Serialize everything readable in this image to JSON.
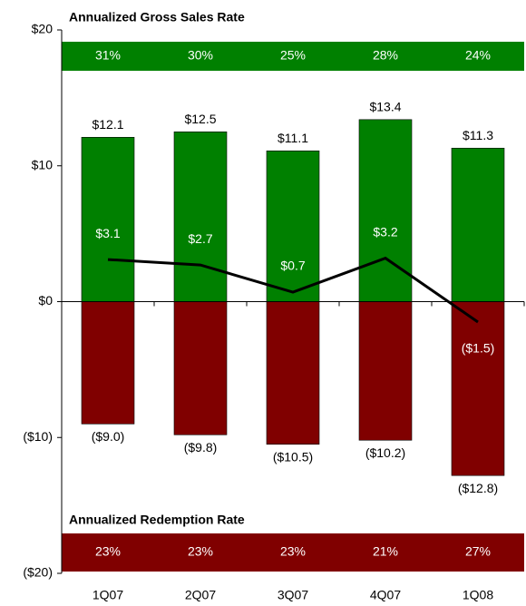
{
  "chart_data": {
    "type": "bar",
    "categories": [
      "1Q07",
      "2Q07",
      "3Q07",
      "4Q07",
      "1Q08"
    ],
    "series": [
      {
        "color": "#008000",
        "values": [
          12.1,
          12.5,
          11.1,
          13.4,
          11.3
        ],
        "value_labels": [
          "$12.1",
          "$12.5",
          "$11.1",
          "$13.4",
          "$11.3"
        ]
      },
      {
        "color": "#800000",
        "values": [
          -9.0,
          -9.8,
          -10.5,
          -10.2,
          -12.8
        ],
        "value_labels": [
          "($9.0)",
          "($9.8)",
          "($10.5)",
          "($10.2)",
          "($12.8)"
        ]
      },
      {
        "type": "line",
        "color": "#000000",
        "values": [
          3.1,
          2.7,
          0.7,
          3.2,
          -1.5
        ],
        "value_labels": [
          "$3.1",
          "$2.7",
          "$0.7",
          "$3.2",
          "($1.5)"
        ]
      }
    ],
    "top_band": {
      "title": "Annualized Gross Sales Rate",
      "color": "#008000",
      "values": [
        31,
        30,
        25,
        28,
        24
      ],
      "value_labels": [
        "31%",
        "30%",
        "25%",
        "28%",
        "24%"
      ]
    },
    "bottom_band": {
      "title": "Annualized Redemption Rate",
      "color": "#800000",
      "values": [
        23,
        23,
        23,
        21,
        27
      ],
      "value_labels": [
        "23%",
        "23%",
        "23%",
        "21%",
        "27%"
      ]
    },
    "ylim": [
      -20,
      20
    ],
    "yticks": [
      {
        "value": -20,
        "label": "($20)"
      },
      {
        "value": -10,
        "label": "($10)"
      },
      {
        "value": 0,
        "label": "$0"
      },
      {
        "value": 10,
        "label": "$10"
      },
      {
        "value": 20,
        "label": "$20"
      }
    ]
  }
}
